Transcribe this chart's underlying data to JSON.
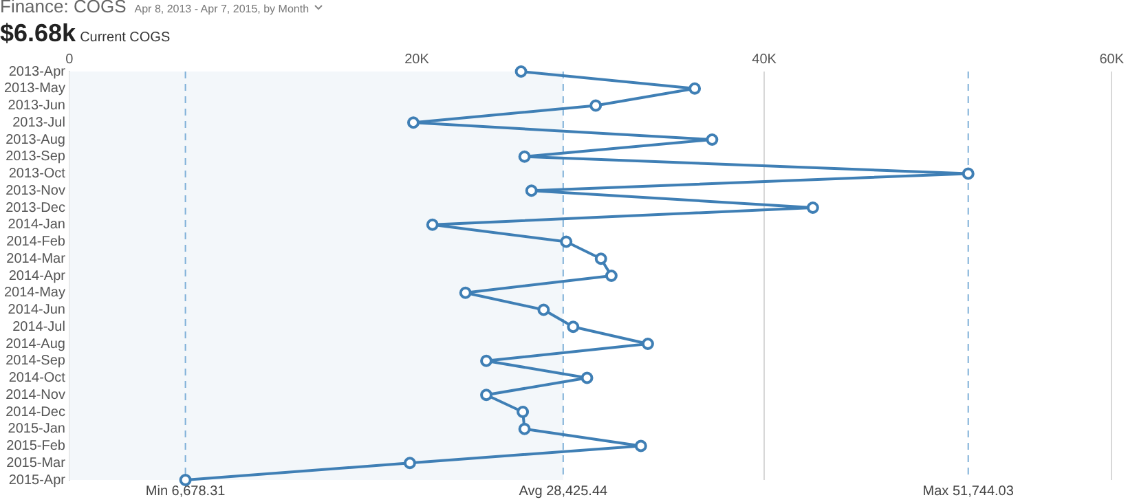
{
  "chart_data": {
    "type": "line",
    "title": "Finance: COGS",
    "subtitle": "Apr 8, 2013 - Apr 7, 2015, by Month",
    "annotations": [
      "$6.68k",
      "Current COGS"
    ],
    "orientation": "horizontal",
    "categories": [
      "2013-Apr",
      "2013-May",
      "2013-Jun",
      "2013-Jul",
      "2013-Aug",
      "2013-Sep",
      "2013-Oct",
      "2013-Nov",
      "2013-Dec",
      "2014-Jan",
      "2014-Feb",
      "2014-Mar",
      "2014-Apr",
      "2014-May",
      "2014-Jun",
      "2014-Jul",
      "2014-Aug",
      "2014-Sep",
      "2014-Oct",
      "2014-Nov",
      "2014-Dec",
      "2015-Jan",
      "2015-Feb",
      "2015-Mar",
      "2015-Apr"
    ],
    "series": [
      {
        "color": "#3f7fb5",
        "values": [
          26000,
          36000,
          30300,
          19800,
          37000,
          26200,
          51744.03,
          26600,
          42800,
          20900,
          28600,
          30600,
          31200,
          22800,
          27300,
          29000,
          33300,
          24000,
          29800,
          24000,
          26100,
          26200,
          32900,
          19600,
          6678.31
        ]
      }
    ],
    "xlim": [
      0,
      60000
    ],
    "xticks": [
      0,
      {
        "value": 20000,
        "label": "20K"
      },
      {
        "value": 40000,
        "label": "40K"
      },
      {
        "value": 60000,
        "label": "60K"
      }
    ],
    "grid": "x",
    "marker": "circle",
    "line_style": "solid",
    "legend": false,
    "bands": [
      {
        "axis": "x",
        "from": 0,
        "to": 28425.44,
        "label": null,
        "color": "#f3f7fa"
      }
    ],
    "ref_lines": [
      {
        "axis": "x",
        "value": 6678.31,
        "label": "Min 6,678.31",
        "color": "#7fb0d8",
        "line_style": "dashed"
      },
      {
        "axis": "x",
        "value": 28425.44,
        "label": "Avg 28,425.44",
        "color": "#7fb0d8",
        "line_style": "dashed"
      },
      {
        "axis": "x",
        "value": 51744.03,
        "label": "Max 51,744.03",
        "color": "#7fb0d8",
        "line_style": "dashed"
      }
    ]
  }
}
